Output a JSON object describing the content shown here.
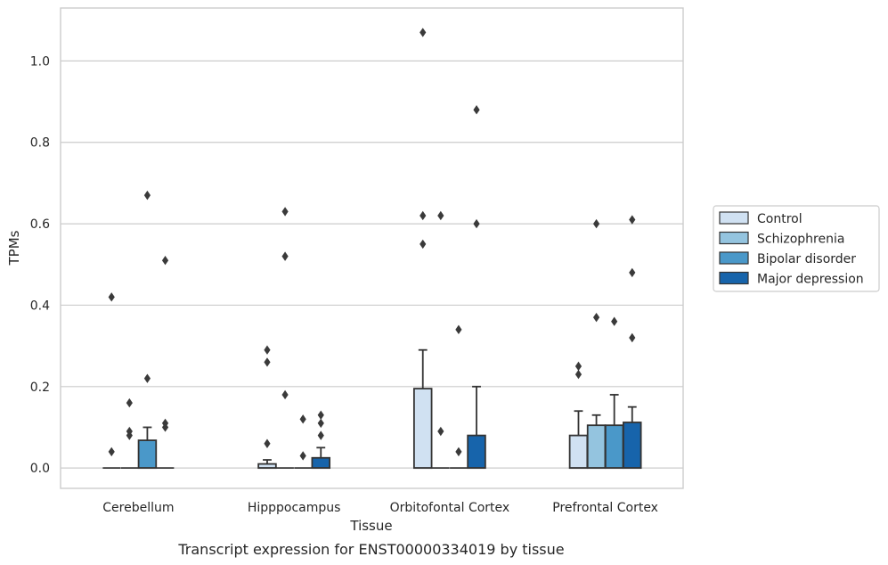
{
  "chart_data": {
    "type": "box",
    "title": "",
    "caption": "Transcript expression for ENST00000334019 by tissue",
    "xlabel": "Tissue",
    "ylabel": "TPMs",
    "ylim": [
      -0.05,
      1.13
    ],
    "yticks": [
      0.0,
      0.2,
      0.4,
      0.6,
      0.8,
      1.0
    ],
    "ytick_labels": [
      "0.0",
      "0.2",
      "0.4",
      "0.6",
      "0.8",
      "1.0"
    ],
    "grid": "horizontal",
    "legend_position": "right",
    "categories": [
      "Cerebellum",
      "Hipppocampus",
      "Orbitofontal Cortex",
      "Prefrontal Cortex"
    ],
    "series": [
      {
        "name": "Control",
        "color": "#d0e1f2",
        "boxes": [
          {
            "q1": 0,
            "median": 0,
            "q3": 0,
            "whisker_low": 0,
            "whisker_high": 0,
            "outliers": [
              0.42,
              0.04
            ]
          },
          {
            "q1": 0,
            "median": 0,
            "q3": 0.01,
            "whisker_low": 0,
            "whisker_high": 0.02,
            "outliers": [
              0.29,
              0.26,
              0.06
            ]
          },
          {
            "q1": 0,
            "median": 0,
            "q3": 0.195,
            "whisker_low": 0,
            "whisker_high": 0.29,
            "outliers": [
              1.07,
              0.62,
              0.55
            ]
          },
          {
            "q1": 0,
            "median": 0,
            "q3": 0.08,
            "whisker_low": 0,
            "whisker_high": 0.14,
            "outliers": [
              0.25,
              0.23
            ]
          }
        ]
      },
      {
        "name": "Schizophrenia",
        "color": "#94c4df",
        "boxes": [
          {
            "q1": 0,
            "median": 0,
            "q3": 0,
            "whisker_low": 0,
            "whisker_high": 0,
            "outliers": [
              0.16,
              0.09,
              0.08
            ]
          },
          {
            "q1": 0,
            "median": 0,
            "q3": 0,
            "whisker_low": 0,
            "whisker_high": 0,
            "outliers": [
              0.63,
              0.52,
              0.18
            ]
          },
          {
            "q1": 0,
            "median": 0,
            "q3": 0,
            "whisker_low": 0,
            "whisker_high": 0,
            "outliers": [
              0.62,
              0.09
            ]
          },
          {
            "q1": 0,
            "median": 0,
            "q3": 0.105,
            "whisker_low": 0,
            "whisker_high": 0.13,
            "outliers": [
              0.6,
              0.37
            ]
          }
        ]
      },
      {
        "name": "Bipolar disorder",
        "color": "#4a98c9",
        "boxes": [
          {
            "q1": 0,
            "median": 0,
            "q3": 0.068,
            "whisker_low": 0,
            "whisker_high": 0.1,
            "outliers": [
              0.67,
              0.22
            ]
          },
          {
            "q1": 0,
            "median": 0,
            "q3": 0,
            "whisker_low": 0,
            "whisker_high": 0,
            "outliers": [
              0.12,
              0.03
            ]
          },
          {
            "q1": 0,
            "median": 0,
            "q3": 0,
            "whisker_low": 0,
            "whisker_high": 0,
            "outliers": [
              0.34,
              0.04
            ]
          },
          {
            "q1": 0,
            "median": 0,
            "q3": 0.105,
            "whisker_low": 0,
            "whisker_high": 0.18,
            "outliers": [
              0.36
            ]
          }
        ]
      },
      {
        "name": "Major depression",
        "color": "#1764ab",
        "boxes": [
          {
            "q1": 0,
            "median": 0,
            "q3": 0,
            "whisker_low": 0,
            "whisker_high": 0,
            "outliers": [
              0.51,
              0.11,
              0.1
            ]
          },
          {
            "q1": 0,
            "median": 0,
            "q3": 0.025,
            "whisker_low": 0,
            "whisker_high": 0.05,
            "outliers": [
              0.13,
              0.11,
              0.08
            ]
          },
          {
            "q1": 0,
            "median": 0,
            "q3": 0.08,
            "whisker_low": 0,
            "whisker_high": 0.2,
            "outliers": [
              0.88,
              0.6
            ]
          },
          {
            "q1": 0,
            "median": 0,
            "q3": 0.112,
            "whisker_low": 0,
            "whisker_high": 0.15,
            "outliers": [
              0.61,
              0.48,
              0.32
            ]
          }
        ]
      }
    ]
  },
  "colors": {
    "edge": "#333333",
    "grid": "#cccccc",
    "frame": "#cccccc",
    "outlier": "#3a3a3a"
  }
}
